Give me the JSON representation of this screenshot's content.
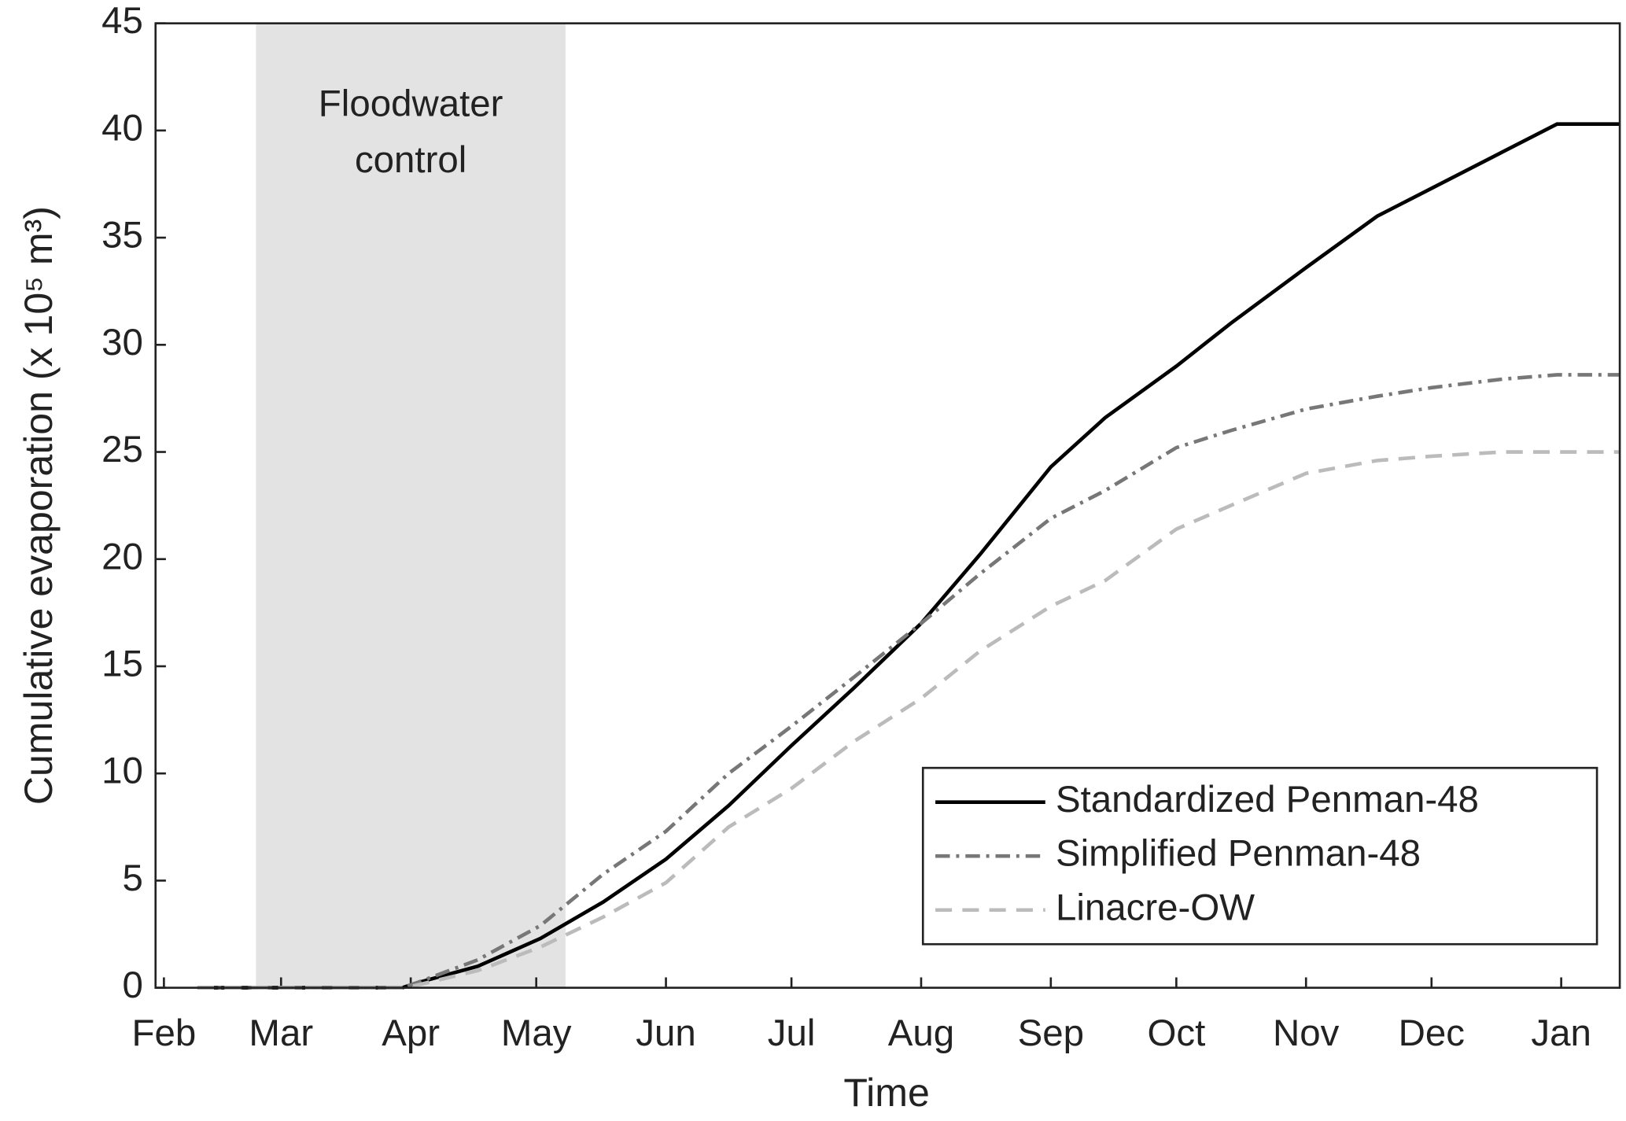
{
  "chart_data": {
    "type": "line",
    "xlabel": "Time",
    "ylabel": "Cumulative evaporation (x 10⁵ m³)",
    "xlim": [
      -2,
      348
    ],
    "ylim": [
      0,
      45
    ],
    "xticks": [
      {
        "value": 0,
        "label": "Feb"
      },
      {
        "value": 28,
        "label": "Mar"
      },
      {
        "value": 59,
        "label": "Apr"
      },
      {
        "value": 89,
        "label": "May"
      },
      {
        "value": 120,
        "label": "Jun"
      },
      {
        "value": 150,
        "label": "Jul"
      },
      {
        "value": 181,
        "label": "Aug"
      },
      {
        "value": 212,
        "label": "Sep"
      },
      {
        "value": 242,
        "label": "Oct"
      },
      {
        "value": 273,
        "label": "Nov"
      },
      {
        "value": 303,
        "label": "Dec"
      },
      {
        "value": 334,
        "label": "Jan"
      }
    ],
    "yticks": [
      0,
      5,
      10,
      15,
      20,
      25,
      30,
      35,
      40,
      45
    ],
    "shaded_span": {
      "x": [
        22,
        96
      ],
      "color": "#e3e3e3",
      "label": [
        "Floodwater",
        "control"
      ]
    },
    "legend": "lower right",
    "x": [
      8,
      57,
      60,
      75,
      90,
      105,
      120,
      135,
      150,
      165,
      181,
      195,
      212,
      225,
      242,
      255,
      273,
      290,
      303,
      320,
      333,
      348
    ],
    "series": [
      {
        "name": "Standardized Penman-48",
        "color": "#000000",
        "style": "solid",
        "values": [
          0,
          0,
          0.2,
          1.0,
          2.3,
          4.0,
          6.0,
          8.5,
          11.3,
          14.0,
          17.0,
          20.2,
          24.3,
          26.6,
          29.0,
          31.0,
          33.6,
          36.0,
          37.3,
          39.0,
          40.3,
          40.3
        ]
      },
      {
        "name": "Simplified Penman-48",
        "color": "#777777",
        "style": "dashdot",
        "values": [
          0,
          0,
          0.2,
          1.3,
          2.9,
          5.3,
          7.3,
          10.0,
          12.2,
          14.5,
          17.0,
          19.3,
          21.9,
          23.2,
          25.2,
          26.0,
          27.0,
          27.6,
          28.0,
          28.4,
          28.6,
          28.6
        ]
      },
      {
        "name": "Linacre-OW",
        "color": "#bbbbbb",
        "style": "dashed",
        "values": [
          0,
          0,
          0.1,
          0.8,
          1.9,
          3.3,
          4.9,
          7.5,
          9.3,
          11.5,
          13.5,
          15.7,
          17.8,
          19.0,
          21.4,
          22.5,
          24.0,
          24.6,
          24.8,
          25.0,
          25.0,
          25.0
        ]
      }
    ]
  }
}
